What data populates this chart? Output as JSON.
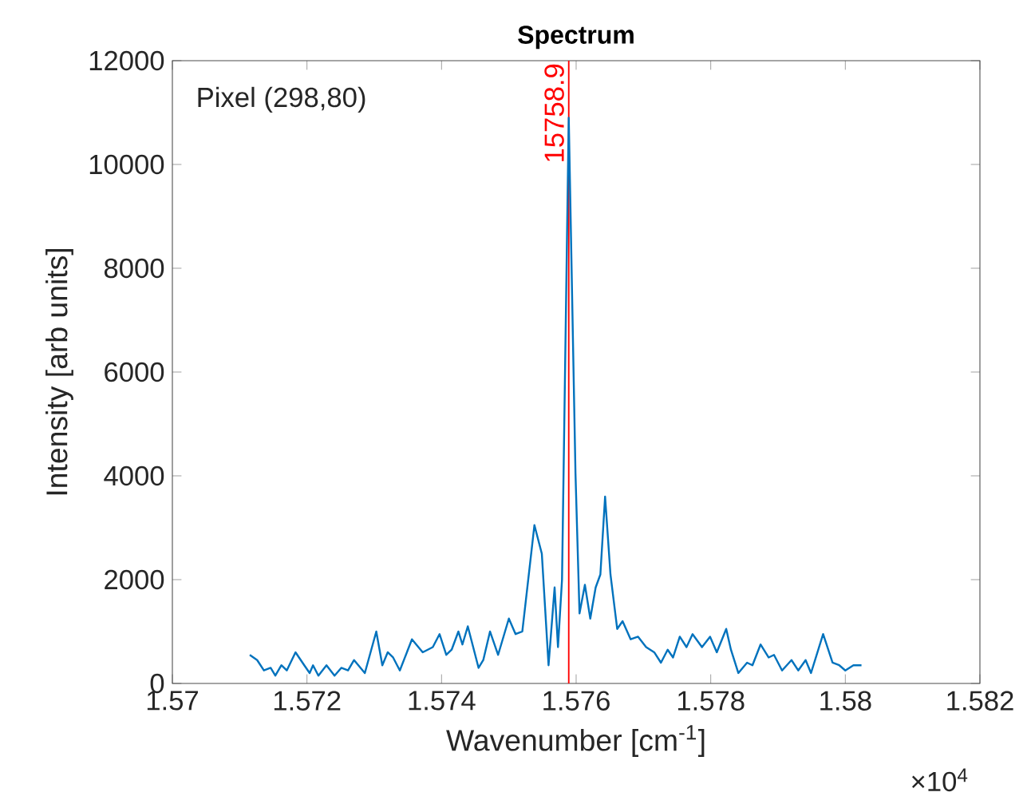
{
  "chart_data": {
    "type": "line",
    "title": "Spectrum",
    "xlabel": "Wavenumber [cm$^{-1}$]",
    "ylabel": "Intensity [arb units]",
    "x": [
      1.57115,
      1.57126,
      1.57136,
      1.57146,
      1.57153,
      1.57162,
      1.5717,
      1.57183,
      1.57196,
      1.57204,
      1.57209,
      1.57217,
      1.57229,
      1.57241,
      1.57251,
      1.57261,
      1.5727,
      1.57286,
      1.57303,
      1.57312,
      1.5732,
      1.57328,
      1.57338,
      1.57356,
      1.57372,
      1.57387,
      1.57397,
      1.57407,
      1.57415,
      1.57425,
      1.57431,
      1.57439,
      1.57447,
      1.57455,
      1.57462,
      1.57472,
      1.57484,
      1.575,
      1.5751,
      1.5752,
      1.57538,
      1.57549,
      1.57559,
      1.57568,
      1.57573,
      1.57579,
      1.57589,
      1.57599,
      1.57605,
      1.57613,
      1.57621,
      1.57629,
      1.57636,
      1.57643,
      1.57651,
      1.57661,
      1.57669,
      1.57681,
      1.57692,
      1.57704,
      1.57716,
      1.57726,
      1.57736,
      1.57744,
      1.57754,
      1.57764,
      1.57773,
      1.57787,
      1.57799,
      1.57809,
      1.57823,
      1.5783,
      1.57841,
      1.57854,
      1.57862,
      1.57874,
      1.57886,
      1.57894,
      1.57906,
      1.5792,
      1.5793,
      1.57941,
      1.57949,
      1.57967,
      1.57981,
      1.57991,
      1.58,
      1.58012,
      1.58024
    ],
    "series": [
      {
        "color": "#0072bd",
        "values": [
          550,
          450,
          250,
          300,
          150,
          350,
          250,
          600,
          350,
          200,
          350,
          150,
          350,
          150,
          300,
          250,
          450,
          200,
          1000,
          350,
          600,
          500,
          250,
          850,
          600,
          700,
          950,
          550,
          650,
          1000,
          750,
          1100,
          700,
          300,
          450,
          1000,
          550,
          1250,
          950,
          1000,
          3050,
          2500,
          350,
          1850,
          700,
          2000,
          10900,
          4050,
          1350,
          1900,
          1250,
          1850,
          2100,
          3600,
          2100,
          1050,
          1200,
          850,
          900,
          700,
          600,
          400,
          650,
          500,
          900,
          700,
          950,
          700,
          900,
          600,
          1050,
          650,
          200,
          400,
          350,
          750,
          500,
          550,
          250,
          450,
          250,
          450,
          200,
          950,
          400,
          350,
          250,
          350,
          350
        ]
      }
    ],
    "xlim": [
      1.57,
      1.582
    ],
    "xticks": [
      1.57,
      1.572,
      1.574,
      1.576,
      1.578,
      1.58,
      1.582
    ],
    "ylim": [
      0,
      12000
    ],
    "yticks": [
      0,
      2000,
      4000,
      6000,
      8000,
      10000,
      12000
    ],
    "ref_lines": [
      {
        "axis": "x",
        "value": 1.57589,
        "color": "#ff0000"
      }
    ],
    "annotations": [
      "Pixel (298,80)",
      "×10$^{4}$",
      {
        "text": "15758.9",
        "x": 1.57589,
        "y": 12000
      }
    ]
  }
}
